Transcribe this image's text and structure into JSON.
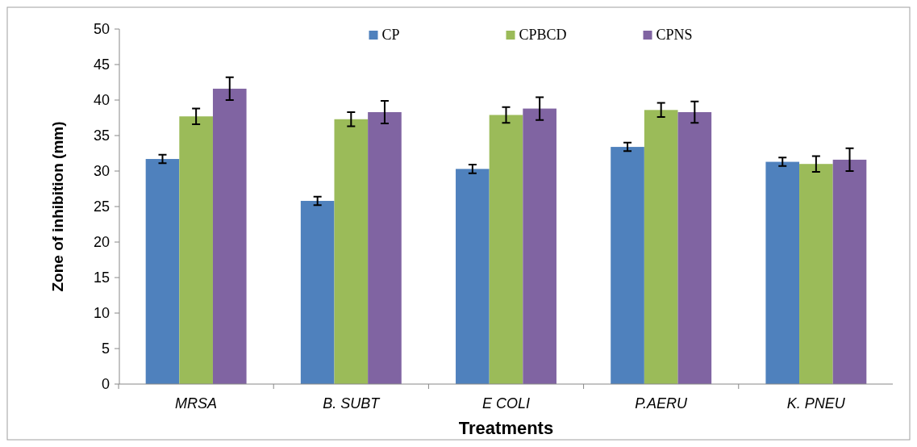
{
  "chart_data": {
    "type": "bar",
    "xlabel": "Treatments",
    "ylabel": "Zone of inhibition (mm)",
    "categories": [
      "MRSA",
      "B. SUBT",
      "E COLI",
      "P.AERU",
      "K. PNEU"
    ],
    "series": [
      {
        "name": "CP",
        "color": "#4f81bd",
        "values": [
          31.7,
          25.8,
          30.3,
          33.4,
          31.3
        ],
        "errors": [
          0.6,
          0.6,
          0.6,
          0.6,
          0.6
        ]
      },
      {
        "name": "CPBCD",
        "color": "#9bbb59",
        "values": [
          37.7,
          37.3,
          37.9,
          38.6,
          31.0
        ],
        "errors": [
          1.1,
          1.0,
          1.1,
          1.0,
          1.1
        ]
      },
      {
        "name": "CPNS",
        "color": "#8064a2",
        "values": [
          41.6,
          38.3,
          38.8,
          38.3,
          31.6
        ],
        "errors": [
          1.6,
          1.6,
          1.6,
          1.5,
          1.6
        ]
      }
    ],
    "ylim": [
      0,
      50
    ],
    "yticks": [
      0,
      5,
      10,
      15,
      20,
      25,
      30,
      35,
      40,
      45,
      50
    ],
    "grid": false,
    "legend": "top"
  }
}
